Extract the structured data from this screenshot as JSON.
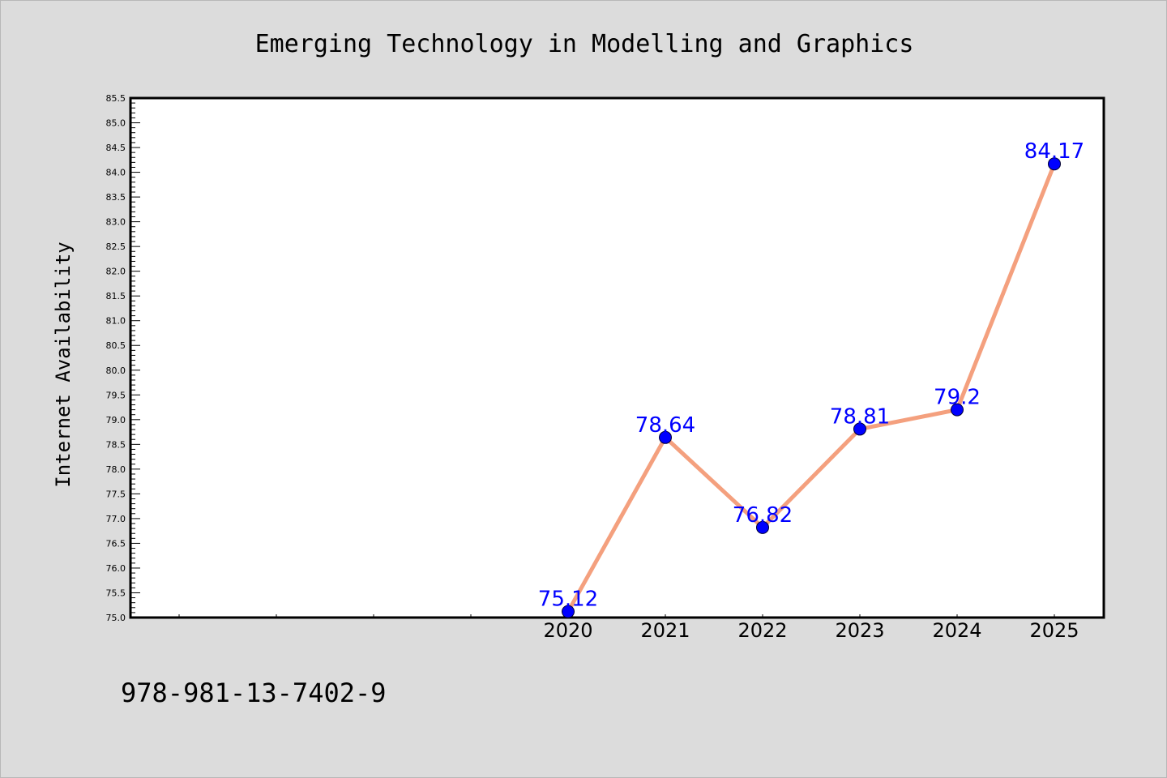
{
  "chart_data": {
    "type": "line",
    "title": "Emerging Technology in Modelling and Graphics",
    "xlabel": "",
    "ylabel": "Internet Availability",
    "categories": [
      "2020",
      "2021",
      "2022",
      "2023",
      "2024",
      "2025"
    ],
    "series": [
      {
        "values": [
          75.12,
          78.64,
          76.82,
          78.81,
          79.2,
          84.17
        ],
        "data_labels": [
          "75.12",
          "78.64",
          "76.82",
          "78.81",
          "79.2",
          "84.17"
        ],
        "line_color": "#f4a07e",
        "marker_color": "#0000ff"
      }
    ],
    "ylim": [
      75.0,
      85.5
    ],
    "yticks": [
      "75.0",
      "75.5",
      "76.0",
      "76.5",
      "77.0",
      "77.5",
      "78.0",
      "78.5",
      "79.0",
      "79.5",
      "80.0",
      "80.5",
      "81.0",
      "81.5",
      "82.0",
      "82.5",
      "83.0",
      "83.5",
      "84.0",
      "84.5",
      "85.0",
      "85.5"
    ],
    "grid": false,
    "legend": "none",
    "label_color": "#0000ff"
  },
  "footer": {
    "isbn": "978-981-13-7402-9"
  }
}
